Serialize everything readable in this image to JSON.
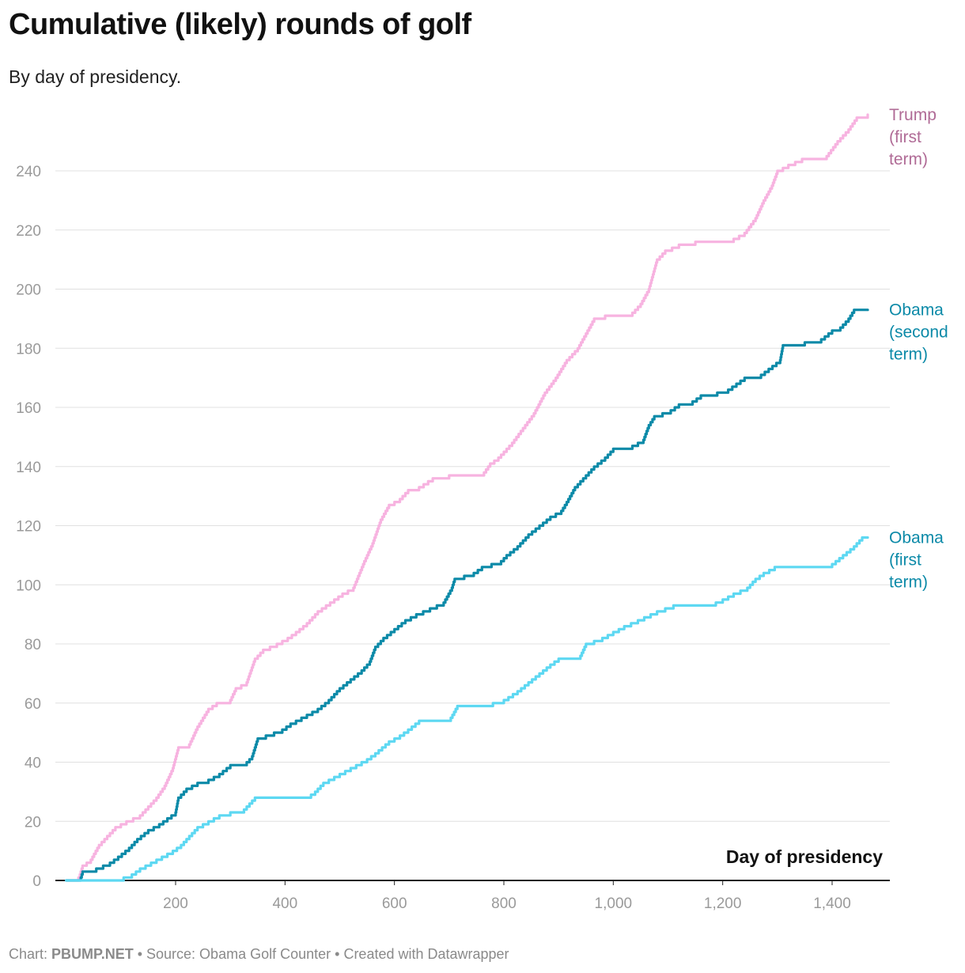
{
  "title": "Cumulative (likely) rounds of golf",
  "subtitle": "By day of presidency.",
  "footer": {
    "prefix": "Chart: ",
    "credit": "PBUMP.NET",
    "rest": " • Source: Obama Golf Counter • Created with Datawrapper"
  },
  "chart_data": {
    "type": "line",
    "xlabel": "Day of presidency",
    "ylabel": "",
    "xlim": [
      0,
      1475
    ],
    "ylim": [
      0,
      260
    ],
    "xticks": [
      200,
      400,
      600,
      800,
      1000,
      1200,
      1400
    ],
    "xtick_labels": [
      "200",
      "400",
      "600",
      "800",
      "1,000",
      "1,200",
      "1,400"
    ],
    "yticks": [
      0,
      20,
      40,
      60,
      80,
      100,
      120,
      140,
      160,
      180,
      200,
      220,
      240
    ],
    "grid": true,
    "legend": "direct labels at line ends (right)",
    "series": [
      {
        "name": "Trump (first term)",
        "label_lines": [
          "Trump",
          "(first",
          "term)"
        ],
        "color": "#f7b3e0",
        "label_color": "#b06b96",
        "points": [
          [
            0,
            0
          ],
          [
            20,
            0
          ],
          [
            25,
            2
          ],
          [
            30,
            5
          ],
          [
            45,
            7
          ],
          [
            60,
            12
          ],
          [
            75,
            15
          ],
          [
            90,
            18
          ],
          [
            110,
            20
          ],
          [
            135,
            22
          ],
          [
            150,
            25
          ],
          [
            165,
            28
          ],
          [
            180,
            32
          ],
          [
            195,
            38
          ],
          [
            205,
            45
          ],
          [
            225,
            46
          ],
          [
            240,
            52
          ],
          [
            260,
            58
          ],
          [
            275,
            60
          ],
          [
            300,
            61
          ],
          [
            310,
            65
          ],
          [
            330,
            67
          ],
          [
            345,
            75
          ],
          [
            360,
            78
          ],
          [
            385,
            80
          ],
          [
            405,
            82
          ],
          [
            420,
            84
          ],
          [
            440,
            87
          ],
          [
            460,
            91
          ],
          [
            475,
            93
          ],
          [
            490,
            95
          ],
          [
            505,
            97
          ],
          [
            525,
            99
          ],
          [
            545,
            108
          ],
          [
            560,
            114
          ],
          [
            575,
            122
          ],
          [
            590,
            127
          ],
          [
            610,
            129
          ],
          [
            625,
            132
          ],
          [
            645,
            133
          ],
          [
            670,
            136
          ],
          [
            700,
            137
          ],
          [
            760,
            137
          ],
          [
            775,
            141
          ],
          [
            790,
            143
          ],
          [
            815,
            148
          ],
          [
            835,
            153
          ],
          [
            855,
            158
          ],
          [
            875,
            165
          ],
          [
            895,
            170
          ],
          [
            915,
            176
          ],
          [
            935,
            180
          ],
          [
            950,
            185
          ],
          [
            965,
            190
          ],
          [
            985,
            191
          ],
          [
            1035,
            192
          ],
          [
            1050,
            195
          ],
          [
            1065,
            200
          ],
          [
            1080,
            210
          ],
          [
            1095,
            213
          ],
          [
            1120,
            215
          ],
          [
            1150,
            216
          ],
          [
            1220,
            217
          ],
          [
            1240,
            219
          ],
          [
            1260,
            224
          ],
          [
            1275,
            230
          ],
          [
            1290,
            235
          ],
          [
            1300,
            240
          ],
          [
            1320,
            242
          ],
          [
            1345,
            244
          ],
          [
            1390,
            245
          ],
          [
            1410,
            250
          ],
          [
            1430,
            254
          ],
          [
            1445,
            258
          ],
          [
            1465,
            259
          ]
        ],
        "end_label_y": 259
      },
      {
        "name": "Obama (second term)",
        "label_lines": [
          "Obama",
          "(second",
          "term)"
        ],
        "color": "#0c8aa8",
        "label_color": "#0c8aa8",
        "points": [
          [
            0,
            0
          ],
          [
            25,
            0
          ],
          [
            30,
            3
          ],
          [
            55,
            4
          ],
          [
            80,
            6
          ],
          [
            95,
            8
          ],
          [
            115,
            11
          ],
          [
            130,
            14
          ],
          [
            150,
            17
          ],
          [
            170,
            19
          ],
          [
            185,
            21
          ],
          [
            200,
            23
          ],
          [
            205,
            28
          ],
          [
            220,
            31
          ],
          [
            240,
            33
          ],
          [
            260,
            34
          ],
          [
            280,
            36
          ],
          [
            300,
            39
          ],
          [
            325,
            39
          ],
          [
            340,
            42
          ],
          [
            350,
            48
          ],
          [
            395,
            51
          ],
          [
            410,
            53
          ],
          [
            440,
            56
          ],
          [
            460,
            58
          ],
          [
            480,
            61
          ],
          [
            500,
            65
          ],
          [
            520,
            68
          ],
          [
            540,
            71
          ],
          [
            555,
            74
          ],
          [
            565,
            79
          ],
          [
            580,
            82
          ],
          [
            600,
            85
          ],
          [
            620,
            88
          ],
          [
            640,
            90
          ],
          [
            665,
            92
          ],
          [
            690,
            94
          ],
          [
            705,
            99
          ],
          [
            710,
            102
          ],
          [
            745,
            104
          ],
          [
            760,
            106
          ],
          [
            795,
            108
          ],
          [
            805,
            110
          ],
          [
            825,
            113
          ],
          [
            845,
            117
          ],
          [
            865,
            120
          ],
          [
            885,
            123
          ],
          [
            905,
            125
          ],
          [
            915,
            128
          ],
          [
            930,
            133
          ],
          [
            945,
            136
          ],
          [
            965,
            140
          ],
          [
            985,
            143
          ],
          [
            1000,
            146
          ],
          [
            1035,
            147
          ],
          [
            1055,
            149
          ],
          [
            1065,
            154
          ],
          [
            1075,
            157
          ],
          [
            1105,
            159
          ],
          [
            1120,
            161
          ],
          [
            1145,
            162
          ],
          [
            1160,
            164
          ],
          [
            1190,
            165
          ],
          [
            1210,
            166
          ],
          [
            1225,
            168
          ],
          [
            1240,
            170
          ],
          [
            1270,
            171
          ],
          [
            1305,
            176
          ],
          [
            1310,
            181
          ],
          [
            1350,
            182
          ],
          [
            1380,
            183
          ],
          [
            1400,
            186
          ],
          [
            1415,
            187
          ],
          [
            1430,
            190
          ],
          [
            1440,
            193
          ],
          [
            1465,
            193
          ]
        ],
        "end_label_y": 193
      },
      {
        "name": "Obama (first term)",
        "label_lines": [
          "Obama",
          "(first",
          "term)"
        ],
        "color": "#5dd8f2",
        "label_color": "#0c8aa8",
        "points": [
          [
            0,
            0
          ],
          [
            95,
            0
          ],
          [
            105,
            1
          ],
          [
            120,
            2
          ],
          [
            135,
            4
          ],
          [
            155,
            6
          ],
          [
            175,
            8
          ],
          [
            195,
            10
          ],
          [
            210,
            12
          ],
          [
            225,
            15
          ],
          [
            240,
            18
          ],
          [
            260,
            20
          ],
          [
            280,
            22
          ],
          [
            300,
            23
          ],
          [
            325,
            24
          ],
          [
            345,
            28
          ],
          [
            440,
            28
          ],
          [
            455,
            30
          ],
          [
            470,
            33
          ],
          [
            490,
            35
          ],
          [
            510,
            37
          ],
          [
            530,
            39
          ],
          [
            550,
            41
          ],
          [
            565,
            43
          ],
          [
            590,
            47
          ],
          [
            610,
            49
          ],
          [
            625,
            51
          ],
          [
            645,
            54
          ],
          [
            700,
            54
          ],
          [
            715,
            59
          ],
          [
            780,
            60
          ],
          [
            800,
            61
          ],
          [
            825,
            64
          ],
          [
            845,
            67
          ],
          [
            865,
            70
          ],
          [
            885,
            73
          ],
          [
            900,
            75
          ],
          [
            940,
            76
          ],
          [
            950,
            80
          ],
          [
            980,
            82
          ],
          [
            1000,
            84
          ],
          [
            1020,
            86
          ],
          [
            1045,
            88
          ],
          [
            1080,
            91
          ],
          [
            1110,
            93
          ],
          [
            1175,
            93
          ],
          [
            1200,
            95
          ],
          [
            1220,
            97
          ],
          [
            1245,
            99
          ],
          [
            1260,
            102
          ],
          [
            1275,
            104
          ],
          [
            1295,
            106
          ],
          [
            1375,
            106
          ],
          [
            1400,
            107
          ],
          [
            1420,
            110
          ],
          [
            1440,
            113
          ],
          [
            1455,
            116
          ],
          [
            1465,
            116
          ]
        ],
        "end_label_y": 116
      }
    ]
  }
}
